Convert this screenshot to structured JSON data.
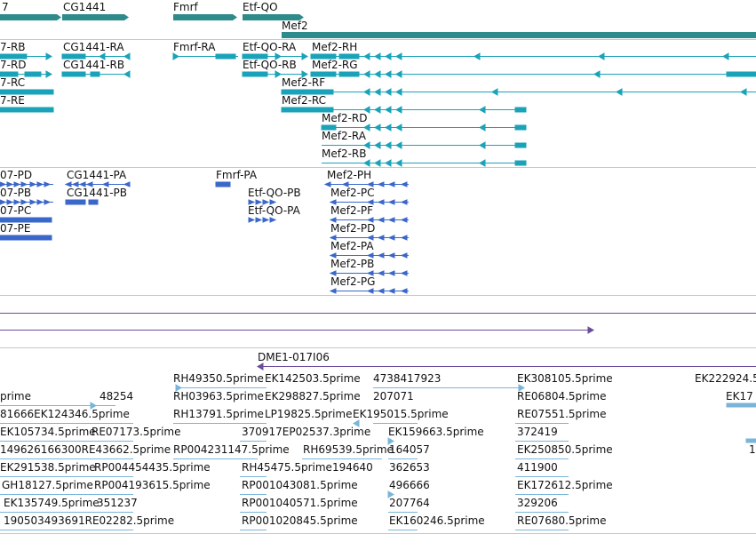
{
  "colors": {
    "gene": "#2e8b8b",
    "transcript": "#1aa3b8",
    "protein": "#3a67c9",
    "clone": "#6a4c9c",
    "est": "#7ab5d9"
  },
  "genes": {
    "g0": "7",
    "g1": "CG1441",
    "g2": "Fmrf",
    "g3": "Etf-QO",
    "g4": "Mef2"
  },
  "transcripts": {
    "t_rb": "7-RB",
    "t_rd": "7-RD",
    "t_rc": "7-RC",
    "t_re": "7-RE",
    "cg_ra": "CG1441-RA",
    "cg_rb": "CG1441-RB",
    "fmrf_ra": "Fmrf-RA",
    "etf_ra": "Etf-QO-RA",
    "etf_rb": "Etf-QO-RB",
    "mef2_rh": "Mef2-RH",
    "mef2_rg": "Mef2-RG",
    "mef2_rf": "Mef2-RF",
    "mef2_rc": "Mef2-RC",
    "mef2_rd": "Mef2-RD",
    "mef2_ra": "Mef2-RA",
    "mef2_rb": "Mef2-RB"
  },
  "proteins": {
    "p_pd": "07-PD",
    "p_pb": "07-PB",
    "p_pc": "07-PC",
    "p_pe": "07-PE",
    "cg_pa": "CG1441-PA",
    "cg_pb": "CG1441-PB",
    "fmrf_pa": "Fmrf-PA",
    "etf_pb": "Etf-QO-PB",
    "etf_pa": "Etf-QO-PA",
    "mef2_ph": "Mef2-PH",
    "mef2_pc": "Mef2-PC",
    "mef2_pf": "Mef2-PF",
    "mef2_pd": "Mef2-PD",
    "mef2_pa": "Mef2-PA",
    "mef2_pb": "Mef2-PB",
    "mef2_pg": "Mef2-PG"
  },
  "clones": {
    "c1": "DME1-017I06"
  },
  "ests": {
    "e01": "RH49350.5prime",
    "e02": "EK142503.5prime",
    "e03": "4738417923",
    "e04": "EK308105.5prime",
    "e05": "EK222924.5",
    "e06": "prime",
    "e07": "48254",
    "e08": "RH03963.5prime",
    "e09": "EK298827.5prime",
    "e10": "207071",
    "e11": "RE06804.5prime",
    "e12": "EK17",
    "e13": "81666EK124346.5prime",
    "e14": "RH13791.5prime",
    "e15": "LP19825.5prime",
    "e16": "EK195015.5prime",
    "e17": "RE07551.5prime",
    "e18": "EK105734.5prime",
    "e19": "RE07173.5prime",
    "e20": "370917EP02537.3prime",
    "e21": "EK159663.5prime",
    "e22": "372419",
    "e23": "149626166300RE43662.5prime",
    "e24": "RP004231147.5prime",
    "e25": "RH69539.5prime",
    "e26": "164057",
    "e27": "EK250850.5prime",
    "e28": "1",
    "e29": "EK291538.5prime",
    "e30": "RP004454435.5prime",
    "e31": "RH45475.5prime194640",
    "e32": "362653",
    "e33": "411900",
    "e34": "GH18127.5prime",
    "e35": "RP004193615.5prime",
    "e36": "RP001043081.5prime",
    "e37": "496666",
    "e38": "EK172612.5prime",
    "e39": "EK135749.5prime",
    "e40": "351237",
    "e41": "RP001040571.5prime",
    "e42": "207764",
    "e43": "329206",
    "e44": "190503493691RE02282.5prime",
    "e45": "RP001020845.5prime",
    "e46": "EK160246.5prime",
    "e47": "RE07680.5prime"
  }
}
